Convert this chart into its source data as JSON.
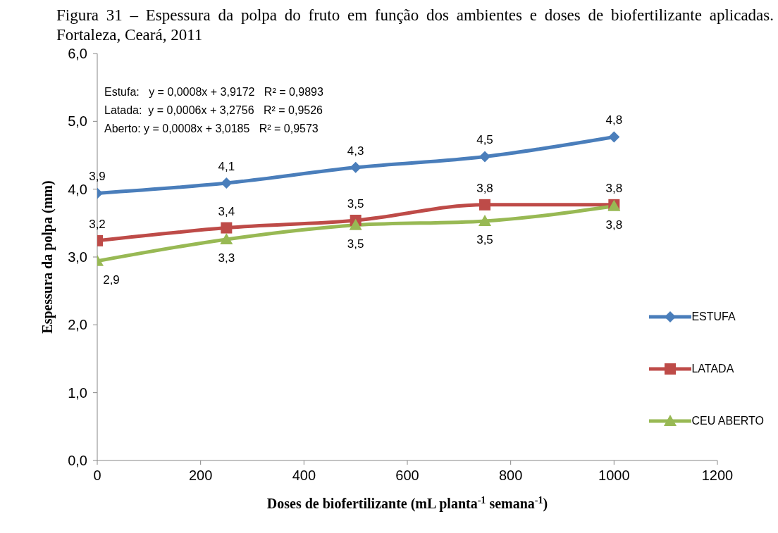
{
  "chart_data": {
    "type": "line",
    "title": "Figura 31 – Espessura da polpa do fruto em função dos ambientes e doses de biofertilizante aplicadas. Fortaleza, Ceará, 2011",
    "xlabel": "Doses de biofertilizante (mL planta$^{-1}$ semana$^{-1}$)",
    "ylabel": "Espessura da polpa (mm)",
    "x": [
      0,
      250,
      500,
      750,
      1000
    ],
    "series": [
      {
        "name": "ESTUFA",
        "color": "#4a7ebb",
        "marker": "diamond",
        "values": [
          3.94,
          4.09,
          4.32,
          4.48,
          4.77
        ],
        "value_labels": [
          "3,9",
          "4,1",
          "4,3",
          "4,5",
          "4,8"
        ]
      },
      {
        "name": "LATADA",
        "color": "#be4b48",
        "marker": "square",
        "values": [
          3.24,
          3.43,
          3.54,
          3.77,
          3.77
        ],
        "value_labels": [
          "3,2",
          "3,4",
          "3,5",
          "3,8",
          "3,8"
        ]
      },
      {
        "name": "CEU ABERTO",
        "color": "#98b954",
        "marker": "triangle",
        "values": [
          2.94,
          3.26,
          3.47,
          3.53,
          3.75
        ],
        "value_labels": [
          "2,9",
          "3,3",
          "3,5",
          "3,5",
          "3,8"
        ]
      }
    ],
    "xlim": [
      0,
      1200
    ],
    "xticks": [
      0,
      200,
      400,
      600,
      800,
      1000,
      1200
    ],
    "ylim": [
      0,
      6
    ],
    "yticks": [
      {
        "value": 0,
        "label": "0,0"
      },
      {
        "value": 1,
        "label": "1,0"
      },
      {
        "value": 2,
        "label": "2,0"
      },
      {
        "value": 3,
        "label": "3,0"
      },
      {
        "value": 4,
        "label": "4,0"
      },
      {
        "value": 5,
        "label": "5,0"
      },
      {
        "value": 6,
        "label": "6,0"
      }
    ],
    "grid": false,
    "legend": "right",
    "annotations": [
      "Estufa:   y = 0,0008x + 3,9172   R² = 0,9893",
      "Latada:  y = 0,0006x + 3,2756   R² = 0,9526",
      "Aberto: y = 0,0008x + 3,0185   R² = 0,9573"
    ]
  }
}
